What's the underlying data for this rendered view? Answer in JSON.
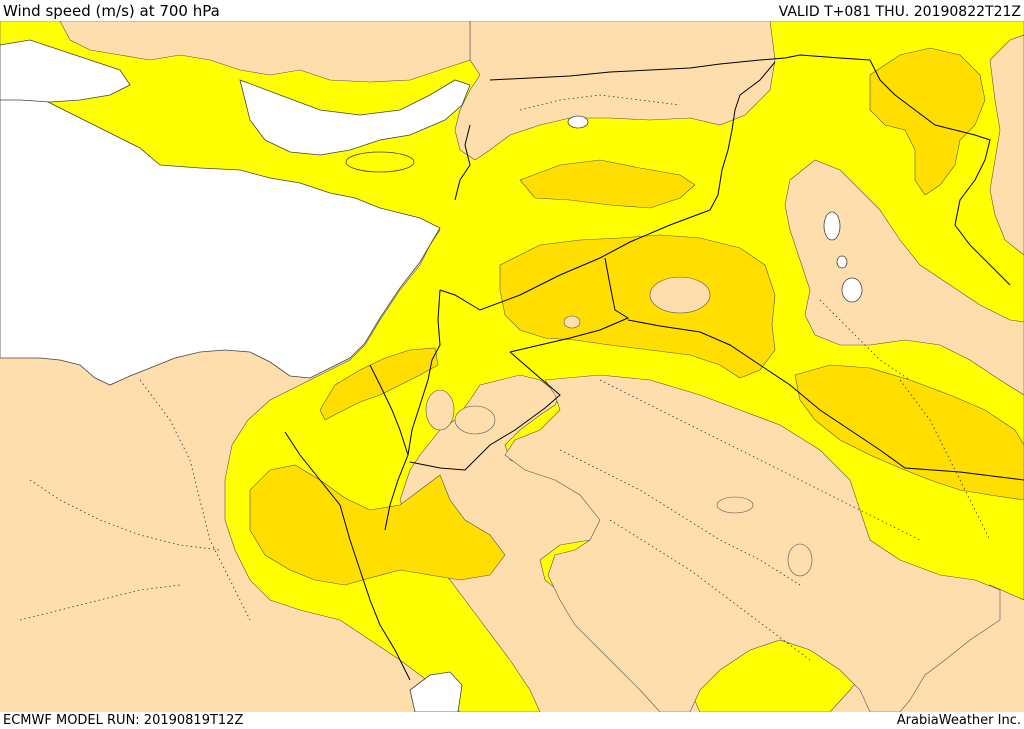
{
  "header": {
    "title": "Wind speed (m/s) at 700 hPa",
    "valid": "VALID T+081 THU. 20190822T21Z"
  },
  "footer": {
    "model_run": "ECMWF MODEL RUN: 20190819T12Z",
    "credit": "ArabiaWeather Inc."
  },
  "colors": {
    "sea": "#ffffff",
    "band_low": "#ffdead",
    "band_mid": "#ffff00",
    "band_high": "#ffde00",
    "border": "#000000"
  }
}
